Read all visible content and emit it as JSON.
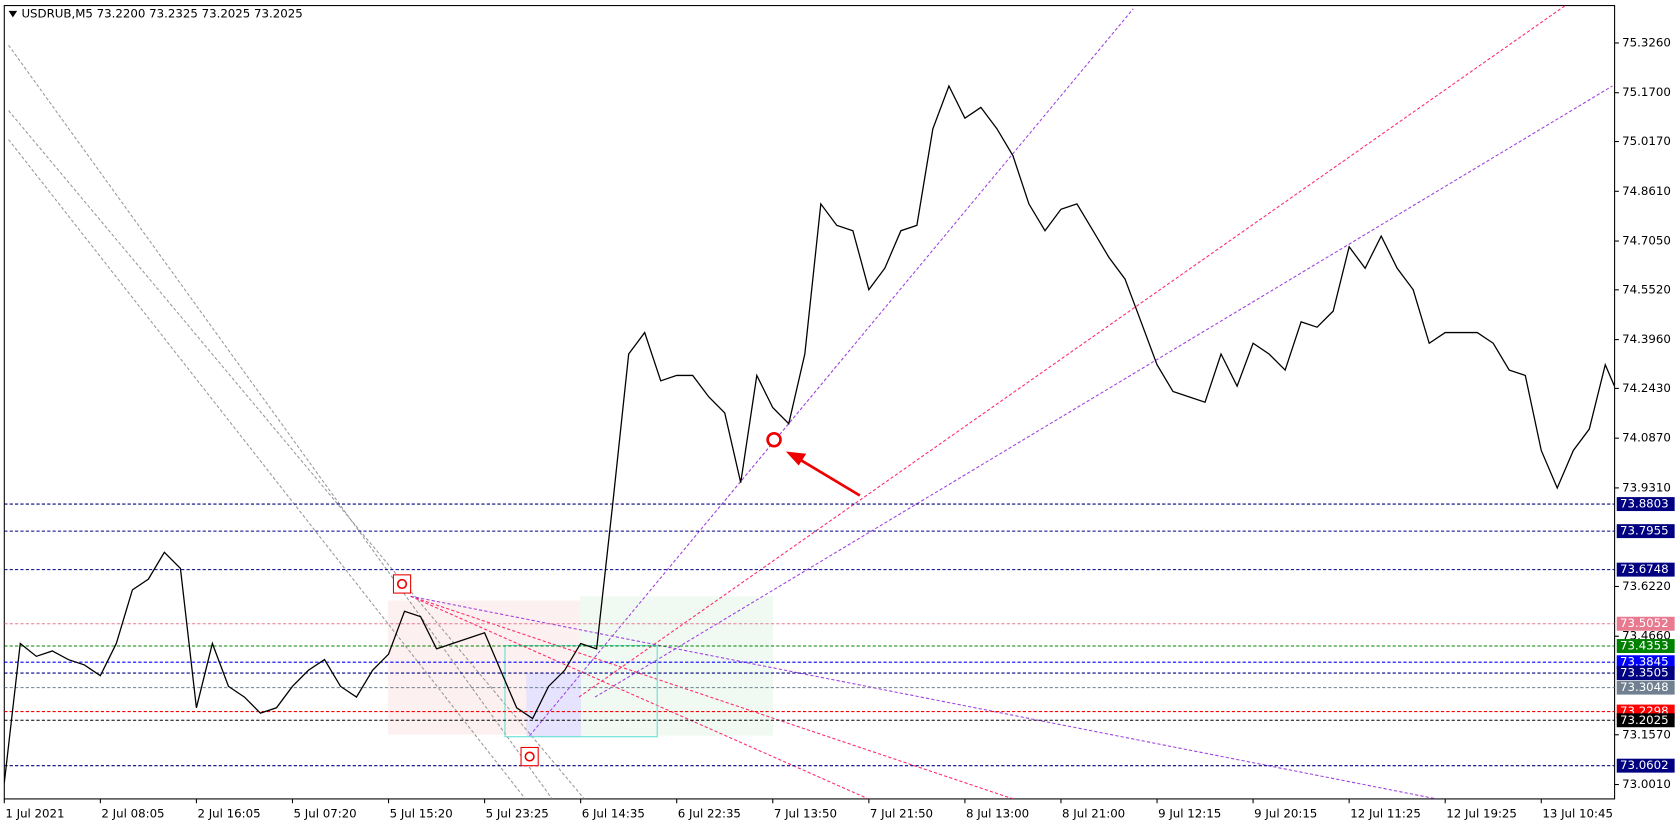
{
  "chart_data": {
    "type": "line",
    "title": "USDRUB,M5  73.2200 73.2325 73.2025 73.2025",
    "color": "#000000",
    "categories": [
      "1 Jul 2021",
      "2 Jul 08:05",
      "2 Jul 16:05",
      "5 Jul 07:20",
      "5 Jul 15:20",
      "5 Jul 23:25",
      "6 Jul 14:35",
      "6 Jul 22:35",
      "7 Jul 13:50",
      "7 Jul 21:50",
      "8 Jul 13:00",
      "8 Jul 21:00",
      "9 Jul 12:15",
      "9 Jul 20:15",
      "12 Jul 11:25",
      "12 Jul 19:25",
      "13 Jul 10:45"
    ],
    "values": [
      [
        73.0064,
        73.4433,
        73.403,
        73.4198,
        73.3929,
        73.3761
      ],
      [
        73.3425,
        73.4433,
        73.6114,
        73.645,
        73.729,
        73.6786
      ],
      [
        73.2416,
        73.4433,
        73.3089,
        73.2753,
        73.2248,
        73.2416
      ],
      [
        73.3089,
        73.3593,
        73.3929,
        73.3089,
        73.2753,
        73.3593
      ],
      [
        73.4097,
        73.5442,
        73.5274,
        73.4265,
        73.4433,
        73.4601
      ],
      [
        73.4769,
        73.3593,
        73.2416,
        73.208,
        73.3089,
        73.3593
      ],
      [
        73.4433,
        73.4265,
        73.8803,
        74.3509,
        74.4181,
        74.2669
      ],
      [
        74.2837,
        74.2837,
        74.2164,
        74.166,
        73.9475,
        74.2837
      ],
      [
        74.1828,
        74.1324,
        74.3509,
        74.8215,
        74.7542,
        74.7374
      ],
      [
        74.5526,
        74.6198,
        74.7374,
        74.7542,
        75.0568,
        75.1912
      ],
      [
        75.0904,
        75.124,
        75.0568,
        74.9727,
        74.8215,
        74.7374
      ],
      [
        74.8047,
        74.8215,
        74.7374,
        74.6534,
        74.5862,
        74.4517
      ],
      [
        74.3173,
        74.2332,
        74.2164,
        74.1996,
        74.3509,
        74.25
      ],
      [
        74.3845,
        74.3509,
        74.3005,
        74.4517,
        74.4349,
        74.4853
      ],
      [
        74.687,
        74.6198,
        74.7206,
        74.6198,
        74.5526,
        74.3845
      ],
      [
        74.4181,
        74.4181,
        74.4181,
        74.3845,
        74.3005,
        74.2837
      ],
      [
        74.0484,
        73.9307,
        74.0484,
        74.1156,
        74.3173,
        74.1996
      ]
    ],
    "ylim": [
      72.9559,
      75.4433
    ],
    "yticks": [
      {
        "value": 75.326,
        "label": "75.3260"
      },
      {
        "value": 75.17,
        "label": "75.1700"
      },
      {
        "value": 75.017,
        "label": "75.0170"
      },
      {
        "value": 74.861,
        "label": "74.8610"
      },
      {
        "value": 74.705,
        "label": "74.7050"
      },
      {
        "value": 74.552,
        "label": "74.5520"
      },
      {
        "value": 74.396,
        "label": "74.3960"
      },
      {
        "value": 74.243,
        "label": "74.2430"
      },
      {
        "value": 74.087,
        "label": "74.0870"
      },
      {
        "value": 73.931,
        "label": "73.9310"
      },
      {
        "value": 73.622,
        "label": "73.6220"
      },
      {
        "value": 73.466,
        "label": "73.4660"
      },
      {
        "value": 73.157,
        "label": "73.1570"
      },
      {
        "value": 73.001,
        "label": "73.0010"
      }
    ],
    "levels": [
      {
        "value": 73.8803,
        "color": "#000080"
      },
      {
        "value": 73.7955,
        "color": "#000080"
      },
      {
        "value": 73.6748,
        "color": "#000080"
      },
      {
        "value": 73.5052,
        "color": "#e87a90"
      },
      {
        "value": 73.4353,
        "color": "#008000"
      },
      {
        "value": 73.3845,
        "color": "#0000ff"
      },
      {
        "value": 73.3505,
        "color": "#000080"
      },
      {
        "value": 73.3048,
        "color": "#708090"
      },
      {
        "value": 73.2298,
        "color": "#ff0000"
      },
      {
        "value": 73.2025,
        "color": "#000000"
      },
      {
        "value": 73.0602,
        "color": "#000080"
      }
    ]
  }
}
